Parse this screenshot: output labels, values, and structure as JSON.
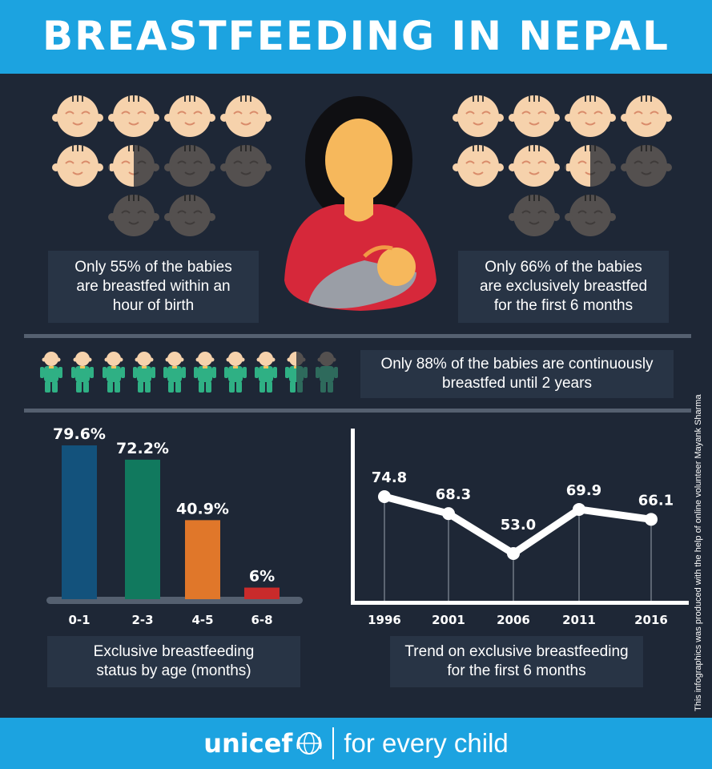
{
  "header": {
    "title": "BREASTFEEDING IN NEPAL"
  },
  "stats": {
    "birth_hour": {
      "text_line1": "Only 55% of the babies",
      "text_line2": "are breastfed within an",
      "text_line3": "hour of birth",
      "fraction": 0.55
    },
    "exclusive_6m": {
      "text_line1": "Only 66% of the babies",
      "text_line2": "are exclusively breastfed",
      "text_line3": "for the first 6 months",
      "fraction": 0.66
    },
    "continuous_2y": {
      "text_line1": "Only 88% of the babies are continuously",
      "text_line2": "breastfed until 2 years",
      "fraction": 0.88
    }
  },
  "chart_data": [
    {
      "type": "bar",
      "categories": [
        "0-1",
        "2-3",
        "4-5",
        "6-8"
      ],
      "values": [
        79.6,
        72.2,
        40.9,
        6
      ],
      "value_labels": [
        "79.6%",
        "72.2%",
        "40.9%",
        "6%"
      ],
      "colors": [
        "#13527c",
        "#11795e",
        "#e0772a",
        "#c92b2b"
      ],
      "title_line1": "Exclusive breastfeeding",
      "title_line2": "status by age (months)",
      "ylim": [
        0,
        100
      ]
    },
    {
      "type": "line",
      "x": [
        "1996",
        "2001",
        "2006",
        "2011",
        "2016"
      ],
      "values": [
        74.8,
        68.3,
        53.0,
        69.9,
        66.1
      ],
      "value_labels": [
        "74.8",
        "68.3",
        "53.0",
        "69.9",
        "66.1"
      ],
      "title_line1": "Trend on exclusive breastfeeding",
      "title_line2": "for the first 6 months"
    }
  ],
  "credit": "This infographics was produced with the help of online volunteer Mayank Sharma",
  "footer": {
    "brand": "unicef",
    "tagline": "for every child"
  },
  "colors": {
    "header": "#1ca3e0",
    "background": "#1e2736",
    "panel": "#283445",
    "skin": "#f6d2ac",
    "skin_dark": "#54504f",
    "onesie": "#2fb084"
  }
}
